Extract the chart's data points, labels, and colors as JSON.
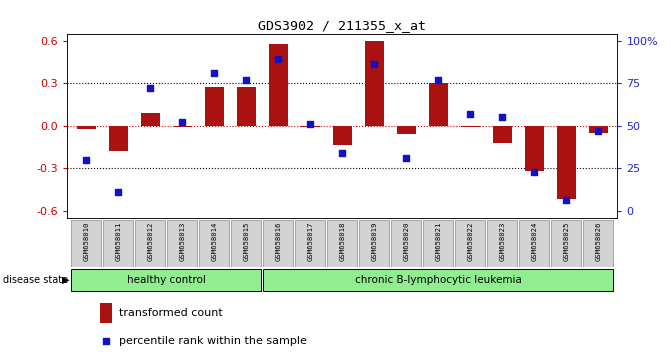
{
  "title": "GDS3902 / 211355_x_at",
  "samples": [
    "GSM658010",
    "GSM658011",
    "GSM658012",
    "GSM658013",
    "GSM658014",
    "GSM658015",
    "GSM658016",
    "GSM658017",
    "GSM658018",
    "GSM658019",
    "GSM658020",
    "GSM658021",
    "GSM658022",
    "GSM658023",
    "GSM658024",
    "GSM658025",
    "GSM658026"
  ],
  "red_bars": [
    -0.02,
    -0.18,
    0.09,
    -0.01,
    0.27,
    0.27,
    0.58,
    -0.01,
    -0.14,
    0.6,
    -0.06,
    0.3,
    -0.01,
    -0.12,
    -0.32,
    -0.52,
    -0.05
  ],
  "blue_pct": [
    30,
    11,
    72,
    52,
    81,
    77,
    89,
    51,
    34,
    86,
    31,
    77,
    57,
    55,
    23,
    6,
    47
  ],
  "healthy_count": 6,
  "leukemia_count": 11,
  "ylim": [
    -0.65,
    0.65
  ],
  "yticks_left": [
    -0.6,
    -0.3,
    0.0,
    0.3,
    0.6
  ],
  "yticks_right_vals": [
    0,
    25,
    50,
    75,
    100
  ],
  "bar_color": "#aa1111",
  "dot_color": "#1111cc",
  "zero_line_color": "#cc0000",
  "dotted_line_color": "#000000",
  "healthy_bg": "#90ee90",
  "leukemia_bg": "#90ee90",
  "sample_bg": "#d3d3d3",
  "left_ylabel_color": "#cc0000",
  "right_ylabel_color": "#2222cc",
  "legend_bar_label": "transformed count",
  "legend_dot_label": "percentile rank within the sample",
  "disease_label": "disease state",
  "healthy_label": "healthy control",
  "leukemia_label": "chronic B-lymphocytic leukemia"
}
